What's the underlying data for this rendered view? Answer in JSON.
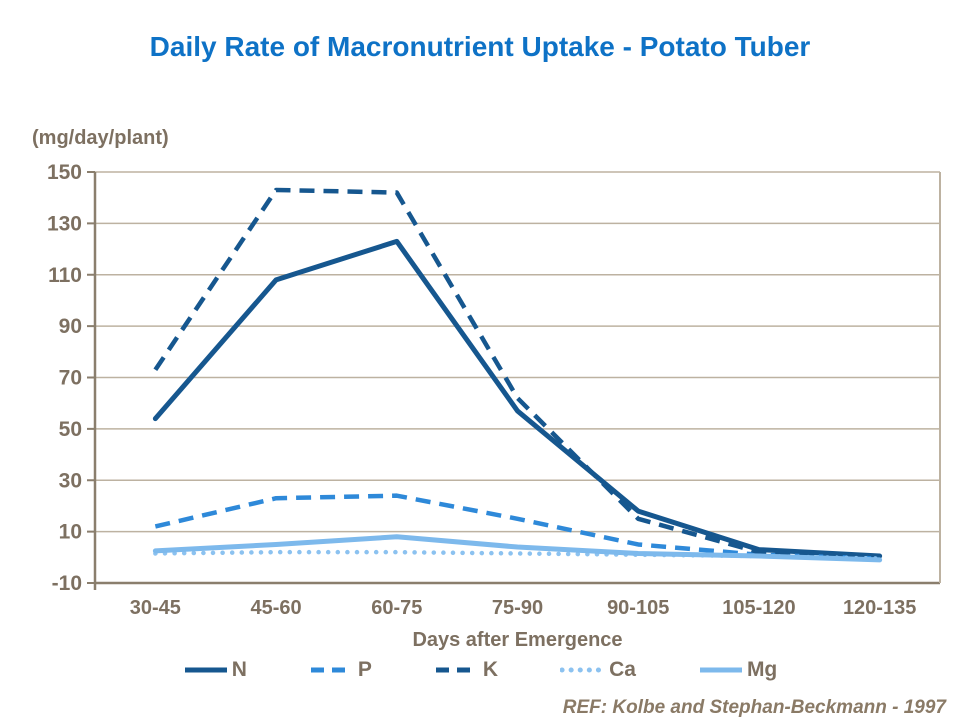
{
  "style": {
    "background": "#FFFFFF",
    "title_color": "#0E72C6",
    "axis_text_color": "#7D7061",
    "grid_color": "#BDB2A1",
    "axis_line_color": "#8A7E6D",
    "ref_color": "#8A7A66"
  },
  "chart_data": {
    "type": "line",
    "title": "Daily Rate of Macronutrient Uptake - Potato Tuber",
    "ylabel": "(mg/day/plant)",
    "xlabel": "Days after Emergence",
    "annotation": "REF: Kolbe and Stephan-Beckmann - 1997",
    "categories": [
      "30-45",
      "45-60",
      "60-75",
      "75-90",
      "90-105",
      "105-120",
      "120-135"
    ],
    "ylim": [
      -10,
      150
    ],
    "yticks": [
      150,
      130,
      110,
      90,
      70,
      50,
      30,
      10,
      -10
    ],
    "ytick_step": 20,
    "grid": "horizontal",
    "legend_position": "bottom",
    "series": [
      {
        "name": "N",
        "style": "solid",
        "color": "#16578F",
        "width": 5,
        "values": [
          54,
          108,
          123,
          57,
          18,
          3,
          0.5
        ]
      },
      {
        "name": "P",
        "style": "dashed",
        "color": "#2E89D9",
        "width": 4.5,
        "values": [
          12,
          23,
          24,
          15,
          5,
          1,
          -0.5
        ]
      },
      {
        "name": "K",
        "style": "dashed",
        "color": "#16578F",
        "width": 4.5,
        "values": [
          73,
          143,
          142,
          62,
          15,
          2,
          -0.5
        ]
      },
      {
        "name": "Ca",
        "style": "dotted",
        "color": "#8CC2F0",
        "width": 4.5,
        "values": [
          1.5,
          2,
          2,
          1.5,
          1,
          0.5,
          -0.5
        ]
      },
      {
        "name": "Mg",
        "style": "solid",
        "color": "#7DB9EC",
        "width": 5,
        "values": [
          2.5,
          5,
          8,
          4,
          1.5,
          0.5,
          -1
        ]
      }
    ]
  }
}
